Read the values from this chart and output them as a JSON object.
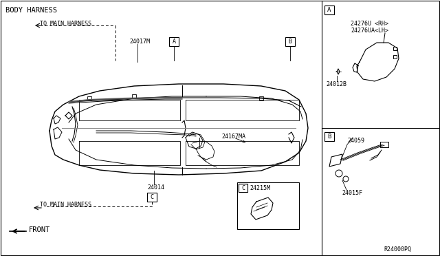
{
  "bg_color": "#ffffff",
  "line_color": "#000000",
  "gray_color": "#888888",
  "diagram_ref": "R24000PQ",
  "labels": {
    "body_harness": "BODY HARNESS",
    "to_main_harness_top": "TO MAIN HARNESS",
    "to_main_harness_bottom": "TO MAIN HARNESS",
    "front": "FRONT",
    "24017M": "24017M",
    "24167MA": "24167MA",
    "24014": "24014",
    "24215M": "24215M",
    "24276U": "24276U <RH>",
    "24276UA": "24276UA<LH>",
    "24012B": "24012B",
    "24059": "24059",
    "24015F": "24015F",
    "A_main": "A",
    "B_main": "B",
    "C_main": "C",
    "A_side": "A",
    "B_side": "B",
    "C_box": "C"
  },
  "fs_title": 7.5,
  "fs_label": 6.5,
  "fs_small": 6.0
}
